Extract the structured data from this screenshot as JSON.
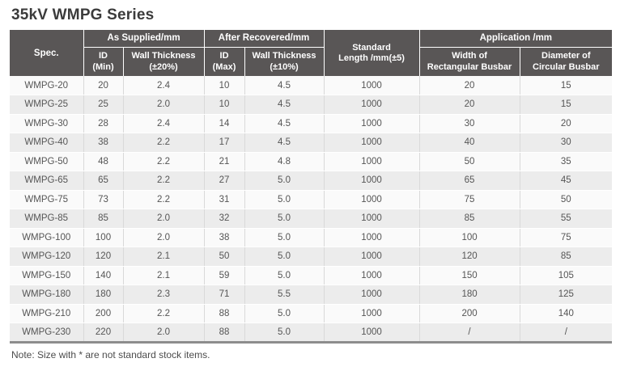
{
  "page": {
    "title": "35kV WMPG Series",
    "note": "Note: Size with * are not standard stock items."
  },
  "table": {
    "groups": {
      "spec": "Spec.",
      "as_supplied": "As Supplied/mm",
      "after_recovered": "After Recovered/mm",
      "standard_length": [
        "Standard",
        "Length /mm(±5)"
      ],
      "application": "Application /mm"
    },
    "subheaders": {
      "id_min": [
        "ID",
        "(Min)"
      ],
      "wall_thickness_20": [
        "Wall Thickness",
        "(±20%)"
      ],
      "id_max": [
        "ID",
        "(Max)"
      ],
      "wall_thickness_10": [
        "Wall Thickness",
        "(±10%)"
      ],
      "width_rect": [
        "Width of",
        "Rectangular Busbar"
      ],
      "diameter_circ": [
        "Diameter of",
        "Circular Busbar"
      ]
    },
    "column_keys": [
      "spec",
      "id_min",
      "wall_thickness_20",
      "id_max",
      "wall_thickness_10",
      "standard_length",
      "width_rect",
      "diameter_circ"
    ],
    "rows": [
      [
        "WMPG-20",
        "20",
        "2.4",
        "10",
        "4.5",
        "1000",
        "20",
        "15"
      ],
      [
        "WMPG-25",
        "25",
        "2.0",
        "10",
        "4.5",
        "1000",
        "20",
        "15"
      ],
      [
        "WMPG-30",
        "28",
        "2.4",
        "14",
        "4.5",
        "1000",
        "30",
        "20"
      ],
      [
        "WMPG-40",
        "38",
        "2.2",
        "17",
        "4.5",
        "1000",
        "40",
        "30"
      ],
      [
        "WMPG-50",
        "48",
        "2.2",
        "21",
        "4.8",
        "1000",
        "50",
        "35"
      ],
      [
        "WMPG-65",
        "65",
        "2.2",
        "27",
        "5.0",
        "1000",
        "65",
        "45"
      ],
      [
        "WMPG-75",
        "73",
        "2.2",
        "31",
        "5.0",
        "1000",
        "75",
        "50"
      ],
      [
        "WMPG-85",
        "85",
        "2.0",
        "32",
        "5.0",
        "1000",
        "85",
        "55"
      ],
      [
        "WMPG-100",
        "100",
        "2.0",
        "38",
        "5.0",
        "1000",
        "100",
        "75"
      ],
      [
        "WMPG-120",
        "120",
        "2.1",
        "50",
        "5.0",
        "1000",
        "120",
        "85"
      ],
      [
        "WMPG-150",
        "140",
        "2.1",
        "59",
        "5.0",
        "1000",
        "150",
        "105"
      ],
      [
        "WMPG-180",
        "180",
        "2.3",
        "71",
        "5.5",
        "1000",
        "180",
        "125"
      ],
      [
        "WMPG-210",
        "200",
        "2.2",
        "88",
        "5.0",
        "1000",
        "200",
        "140"
      ],
      [
        "WMPG-230",
        "220",
        "2.0",
        "88",
        "5.0",
        "1000",
        "/",
        "/"
      ]
    ]
  },
  "colors": {
    "header_bg": "#595656",
    "row_odd": "#fafafa",
    "row_even": "#ececec",
    "body_text": "#555555",
    "title_text": "#3b3b3b",
    "bottom_border": "#8d8d8d"
  }
}
